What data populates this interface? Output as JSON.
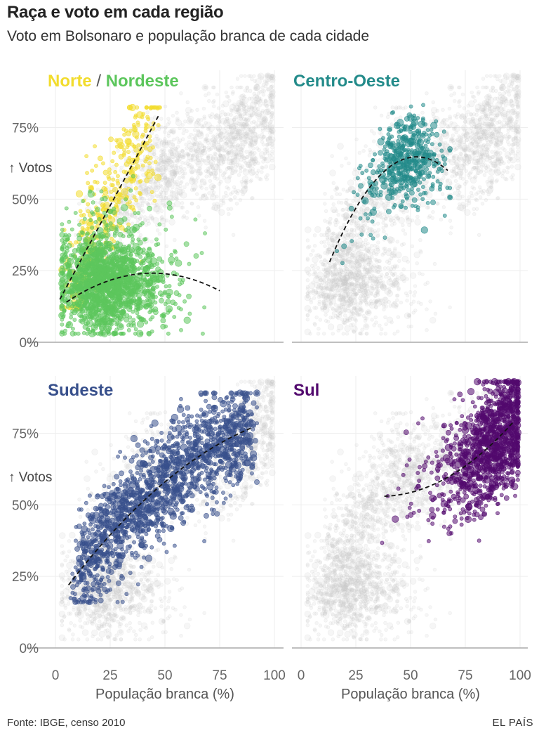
{
  "title": "Raça e voto em cada região",
  "subtitle": "Voto em Bolsonaro e população branca de cada cidade",
  "footer": {
    "source": "Fonte: IBGE, censo 2010",
    "brand": "EL PAÍS"
  },
  "colors": {
    "Norte": "#f2dc2d",
    "Nordeste": "#5cc65c",
    "Centro-Oeste": "#238b8a",
    "Sudeste": "#38508c",
    "Sul": "#520a6e",
    "background_points": "#cccccc",
    "trend": "#111111",
    "grid": "#eeeeee",
    "axis": "#aaaaaa"
  },
  "chart_data": [
    {
      "type": "scatter",
      "panel": "Norte / Nordeste",
      "title_parts": [
        "Norte",
        " / ",
        "Nordeste"
      ],
      "xlabel": "",
      "ylabel": "↑ Votos",
      "xlim": [
        0,
        100
      ],
      "ylim": [
        0,
        95
      ],
      "x_ticks": [],
      "y_ticks": [
        "75%",
        "50%",
        "25%",
        "0%"
      ],
      "series": [
        {
          "name": "Norte",
          "x_range": [
            3,
            48
          ],
          "y_range": [
            12,
            82
          ],
          "n": 380,
          "trend": {
            "kind": "linear",
            "points": [
              [
                2,
                15
              ],
              [
                47,
                79
              ]
            ]
          }
        },
        {
          "name": "Nordeste",
          "x_range": [
            3,
            75
          ],
          "y_range": [
            3,
            58
          ],
          "n": 1750,
          "trend": {
            "kind": "quadratic",
            "points": [
              [
                5,
                14
              ],
              [
                40,
                24
              ],
              [
                75,
                18
              ]
            ]
          }
        }
      ]
    },
    {
      "type": "scatter",
      "panel": "Centro-Oeste",
      "title_parts": [
        "Centro-Oeste"
      ],
      "xlabel": "",
      "ylabel": "",
      "xlim": [
        0,
        100
      ],
      "ylim": [
        0,
        95
      ],
      "x_ticks": [],
      "y_ticks": [],
      "series": [
        {
          "name": "Centro-Oeste",
          "x_range": [
            13,
            68
          ],
          "y_range": [
            15,
            83
          ],
          "n": 465,
          "trend": {
            "kind": "quadratic",
            "points": [
              [
                13,
                28
              ],
              [
                47,
                64
              ],
              [
                67,
                60
              ]
            ]
          }
        }
      ]
    },
    {
      "type": "scatter",
      "panel": "Sudeste",
      "title_parts": [
        "Sudeste"
      ],
      "xlabel": "População branca (%)",
      "ylabel": "↑ Votos",
      "xlim": [
        0,
        100
      ],
      "ylim": [
        0,
        95
      ],
      "x_ticks": [
        "0",
        "25",
        "50",
        "75",
        "100"
      ],
      "y_ticks": [
        "75%",
        "50%",
        "25%",
        "0%"
      ],
      "series": [
        {
          "name": "Sudeste",
          "x_range": [
            6,
            92
          ],
          "y_range": [
            16,
            89
          ],
          "n": 1668,
          "trend": {
            "kind": "quadratic",
            "points": [
              [
                6,
                22
              ],
              [
                50,
                58
              ],
              [
                90,
                77
              ]
            ]
          }
        }
      ]
    },
    {
      "type": "scatter",
      "panel": "Sul",
      "title_parts": [
        "Sul"
      ],
      "xlabel": "População branca (%)",
      "ylabel": "",
      "xlim": [
        0,
        100
      ],
      "ylim": [
        0,
        95
      ],
      "x_ticks": [
        "0",
        "25",
        "50",
        "75",
        "100"
      ],
      "y_ticks": [],
      "series": [
        {
          "name": "Sul",
          "x_range": [
            37,
            99
          ],
          "y_range": [
            28,
            93
          ],
          "n": 1191,
          "trend": {
            "kind": "quadratic",
            "points": [
              [
                38,
                53
              ],
              [
                70,
                61
              ],
              [
                97,
                79
              ]
            ]
          }
        }
      ]
    }
  ]
}
